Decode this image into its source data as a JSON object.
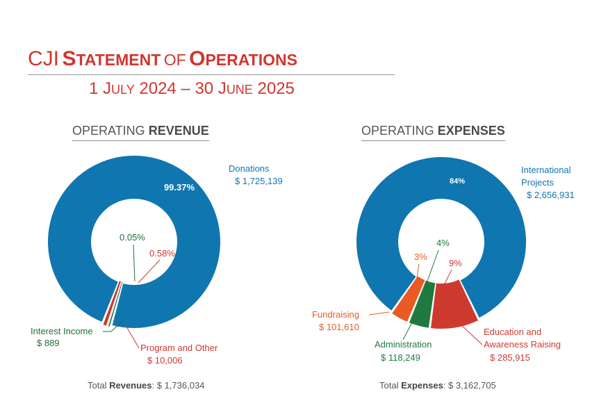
{
  "header": {
    "title_prefix": "CJI",
    "title_word1_first": "S",
    "title_word1_rest": "TATEMENT",
    "title_of": "OF",
    "title_word2_first": "O",
    "title_word2_rest": "PERATIONS",
    "subtitle_a": "1 J",
    "subtitle_b": "ULY",
    "subtitle_c": " 2024 – 30 J",
    "subtitle_d": "UNE",
    "subtitle_e": " 2025"
  },
  "colors": {
    "title_red": "#d1362f",
    "donations_blue": "#0f76b0",
    "interest_green": "#1e6e3a",
    "program_red": "#d1362f",
    "fundraising_orange": "#ea5a24",
    "admin_green": "#1e7a3e",
    "education_red": "#cf3a30",
    "international_blue": "#0f76b0"
  },
  "revenue": {
    "heading_light": "OPERATING",
    "heading_bold": "REVENUE",
    "total_label": "Total",
    "total_label_bold": "Revenues",
    "total_value": ": $ 1,736,034"
  },
  "expenses": {
    "heading_light": "OPERATING",
    "heading_bold": "EXPENSES",
    "total_label": "Total",
    "total_label_bold": "Expenses",
    "total_value": ": $ 3,162,705"
  },
  "chart_data": [
    {
      "type": "pie",
      "variant": "donut",
      "title": "OPERATING REVENUE",
      "categories": [
        "Donations",
        "Interest Income",
        "Program and Other"
      ],
      "values": [
        1725139,
        889,
        10006
      ],
      "percent_labels": [
        "99.37%",
        "0.05%",
        "0.58%"
      ],
      "value_labels": [
        "$ 1,725,139",
        "$ 889",
        "$ 10,006"
      ],
      "total": "$ 1,736,034"
    },
    {
      "type": "pie",
      "variant": "donut",
      "title": "OPERATING EXPENSES",
      "categories": [
        "International Projects",
        "Education and Awareness Raising",
        "Administration",
        "Fundraising"
      ],
      "values": [
        2656931,
        285915,
        118249,
        101610
      ],
      "percent_labels": [
        "84%",
        "9%",
        "4%",
        "3%"
      ],
      "value_labels": [
        "$ 2,656,931",
        "$ 285,915",
        "$ 118,249",
        "$ 101,610"
      ],
      "total": "$ 3,162,705"
    }
  ]
}
